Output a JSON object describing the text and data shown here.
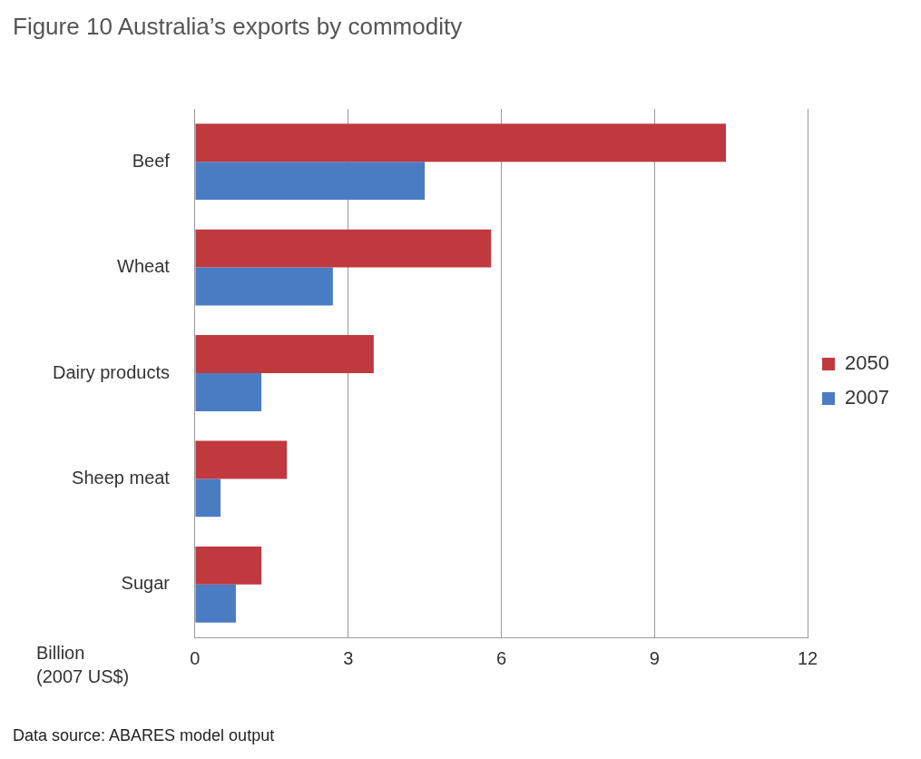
{
  "chart_data": {
    "type": "bar",
    "orientation": "horizontal",
    "title": "Figure 10 Australia’s exports by commodity",
    "xlabel": "Billion (2007 US$)",
    "annotations": [
      "Data source: ABARES model output"
    ],
    "categories": [
      "Beef",
      "Wheat",
      "Dairy products",
      "Sheep meat",
      "Sugar"
    ],
    "series": [
      {
        "name": "2050",
        "color": "#c0393f",
        "values": [
          10.4,
          5.8,
          3.5,
          1.8,
          1.3
        ]
      },
      {
        "name": "2007",
        "color": "#4a7cc4",
        "values": [
          4.5,
          2.7,
          1.3,
          0.5,
          0.8
        ]
      }
    ],
    "xlim": [
      0,
      12
    ],
    "xticks": [
      0,
      3,
      6,
      9,
      12
    ],
    "grid": "x",
    "legend": "right"
  }
}
